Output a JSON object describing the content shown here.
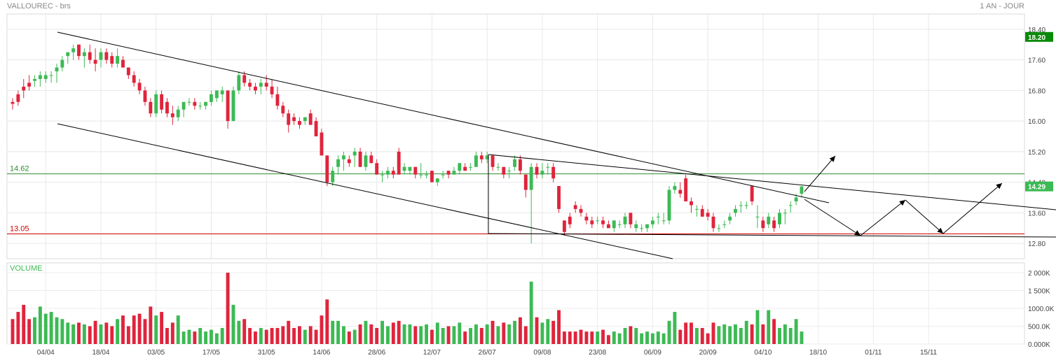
{
  "header": {
    "title": "VALLOUREC - brs",
    "period": "1 AN - JOUR"
  },
  "volume_label": "VOLUME",
  "colors": {
    "up": "#3cba54",
    "down": "#e0243c",
    "resistance": "#2e8b2e",
    "support": "#cc0000",
    "price_badge": "#3cba54",
    "last_badge_bg": "#0a8a0a"
  },
  "chart_data": {
    "type": "candlestick",
    "price_axis": {
      "ticks": [
        "18.40",
        "17.60",
        "16.80",
        "16.00",
        "15.20",
        "14.40",
        "13.60",
        "12.80"
      ],
      "range": [
        12.4,
        18.8
      ]
    },
    "volume_axis": {
      "ticks": [
        "2 000K",
        "1 500K",
        "1000.0K",
        "500.0K",
        "0.000K"
      ],
      "range": [
        0,
        2000
      ]
    },
    "date_labels": [
      "04/04",
      "18/04",
      "03/05",
      "17/05",
      "31/05",
      "14/06",
      "28/06",
      "12/07",
      "26/07",
      "09/08",
      "23/08",
      "06/09",
      "20/09",
      "04/10",
      "18/10",
      "01/11",
      "15/11"
    ],
    "levels": [
      {
        "label": "14.62",
        "value": 14.62,
        "kind": "resistance"
      },
      {
        "label": "13.05",
        "value": 13.05,
        "kind": "support"
      }
    ],
    "badges": [
      {
        "label": "18.20",
        "value": 18.2
      },
      {
        "label": "14.29",
        "value": 14.29
      }
    ],
    "candles": [
      [
        16.5,
        16.6,
        16.3,
        16.45,
        700
      ],
      [
        16.7,
        16.8,
        16.4,
        16.5,
        900
      ],
      [
        16.9,
        17.1,
        16.6,
        16.8,
        1100
      ],
      [
        17.0,
        17.2,
        16.8,
        16.9,
        700
      ],
      [
        17.05,
        17.2,
        16.9,
        17.1,
        750
      ],
      [
        17.1,
        17.3,
        16.9,
        17.2,
        1050
      ],
      [
        17.1,
        17.3,
        17.0,
        17.2,
        850
      ],
      [
        17.2,
        17.3,
        17.0,
        17.2,
        900
      ],
      [
        17.3,
        17.5,
        17.0,
        17.4,
        750
      ],
      [
        17.4,
        17.7,
        17.3,
        17.6,
        700
      ],
      [
        17.7,
        17.8,
        17.5,
        17.8,
        600
      ],
      [
        17.8,
        18.0,
        17.6,
        17.9,
        550
      ],
      [
        18.0,
        18.0,
        17.6,
        17.7,
        600
      ],
      [
        17.7,
        17.9,
        17.4,
        17.8,
        550
      ],
      [
        17.8,
        18.0,
        17.5,
        17.6,
        500
      ],
      [
        17.6,
        17.9,
        17.3,
        17.5,
        650
      ],
      [
        17.6,
        17.9,
        17.4,
        17.8,
        550
      ],
      [
        17.8,
        17.9,
        17.5,
        17.6,
        600
      ],
      [
        17.7,
        17.8,
        17.4,
        17.5,
        500
      ],
      [
        17.5,
        17.9,
        17.4,
        17.7,
        700
      ],
      [
        17.6,
        17.7,
        17.4,
        17.4,
        800
      ],
      [
        17.4,
        17.4,
        17.1,
        17.2,
        500
      ],
      [
        17.2,
        17.3,
        16.9,
        17.0,
        800
      ],
      [
        17.0,
        17.1,
        16.7,
        16.8,
        850
      ],
      [
        16.8,
        16.9,
        16.4,
        16.5,
        700
      ],
      [
        16.5,
        16.6,
        16.1,
        16.2,
        1050
      ],
      [
        16.2,
        16.8,
        16.1,
        16.7,
        800
      ],
      [
        16.7,
        16.8,
        16.2,
        16.3,
        900
      ],
      [
        16.5,
        16.6,
        16.1,
        16.2,
        450
      ],
      [
        16.2,
        16.4,
        15.9,
        16.1,
        600
      ],
      [
        16.1,
        16.4,
        16.0,
        16.3,
        800
      ],
      [
        16.3,
        16.5,
        16.1,
        16.5,
        350
      ],
      [
        16.5,
        16.6,
        16.4,
        16.5,
        400
      ],
      [
        16.5,
        16.6,
        16.3,
        16.4,
        350
      ],
      [
        16.4,
        16.5,
        16.3,
        16.4,
        450
      ],
      [
        16.4,
        16.5,
        16.3,
        16.5,
        350
      ],
      [
        16.5,
        16.8,
        16.4,
        16.7,
        400
      ],
      [
        16.6,
        16.8,
        16.5,
        16.8,
        300
      ],
      [
        16.7,
        16.9,
        16.5,
        16.8,
        450
      ],
      [
        16.8,
        16.8,
        15.8,
        16.0,
        2000
      ],
      [
        16.0,
        16.9,
        16.0,
        16.8,
        1100
      ],
      [
        16.8,
        17.3,
        16.7,
        17.2,
        650
      ],
      [
        17.2,
        17.3,
        16.9,
        17.0,
        700
      ],
      [
        17.0,
        17.1,
        16.8,
        16.9,
        450
      ],
      [
        16.9,
        17.0,
        16.7,
        16.8,
        350
      ],
      [
        16.9,
        17.1,
        16.7,
        17.0,
        450
      ],
      [
        17.0,
        17.2,
        16.8,
        16.9,
        400
      ],
      [
        16.9,
        17.1,
        16.6,
        16.7,
        450
      ],
      [
        16.7,
        16.9,
        16.3,
        16.4,
        450
      ],
      [
        16.4,
        16.5,
        16.1,
        16.2,
        500
      ],
      [
        16.2,
        16.3,
        15.7,
        15.9,
        650
      ],
      [
        16.1,
        16.2,
        15.9,
        16.0,
        450
      ],
      [
        16.0,
        16.1,
        15.8,
        15.9,
        500
      ],
      [
        16.0,
        16.1,
        15.9,
        16.1,
        400
      ],
      [
        16.2,
        16.3,
        15.9,
        15.9,
        500
      ],
      [
        16.0,
        16.1,
        15.6,
        15.6,
        400
      ],
      [
        15.7,
        15.8,
        15.1,
        15.1,
        800
      ],
      [
        15.1,
        15.1,
        14.3,
        14.4,
        1250
      ],
      [
        14.4,
        14.8,
        14.3,
        14.7,
        650
      ],
      [
        14.8,
        15.1,
        14.6,
        15.0,
        650
      ],
      [
        15.0,
        15.2,
        14.7,
        15.1,
        500
      ],
      [
        15.0,
        15.1,
        14.8,
        14.9,
        350
      ],
      [
        15.1,
        15.3,
        14.8,
        15.2,
        400
      ],
      [
        15.2,
        15.3,
        14.8,
        14.8,
        550
      ],
      [
        14.8,
        15.2,
        14.7,
        15.1,
        650
      ],
      [
        15.1,
        15.2,
        14.9,
        14.9,
        550
      ],
      [
        14.9,
        15.0,
        14.6,
        14.6,
        450
      ],
      [
        14.6,
        14.7,
        14.4,
        14.6,
        650
      ],
      [
        14.6,
        14.8,
        14.5,
        14.7,
        500
      ],
      [
        14.7,
        14.8,
        14.5,
        14.6,
        600
      ],
      [
        15.2,
        15.3,
        14.6,
        14.6,
        650
      ],
      [
        14.7,
        14.9,
        14.6,
        14.8,
        550
      ],
      [
        14.7,
        14.8,
        14.6,
        14.8,
        550
      ],
      [
        14.8,
        14.8,
        14.5,
        14.6,
        500
      ],
      [
        14.6,
        14.9,
        14.5,
        14.6,
        500
      ],
      [
        14.6,
        14.7,
        14.5,
        14.6,
        550
      ],
      [
        14.7,
        14.7,
        14.4,
        14.4,
        400
      ],
      [
        14.4,
        14.5,
        14.3,
        14.5,
        600
      ],
      [
        14.6,
        14.7,
        14.5,
        14.6,
        450
      ],
      [
        14.7,
        14.7,
        14.5,
        14.6,
        500
      ],
      [
        14.6,
        14.8,
        14.6,
        14.7,
        500
      ],
      [
        14.7,
        14.9,
        14.6,
        14.9,
        600
      ],
      [
        14.8,
        14.9,
        14.7,
        14.7,
        350
      ],
      [
        14.8,
        14.9,
        14.7,
        14.8,
        450
      ],
      [
        14.8,
        15.2,
        14.8,
        15.1,
        550
      ],
      [
        15.1,
        15.2,
        14.9,
        15.0,
        450
      ],
      [
        15.0,
        15.2,
        14.9,
        15.1,
        550
      ],
      [
        15.1,
        15.1,
        14.7,
        14.8,
        650
      ],
      [
        14.8,
        14.9,
        14.7,
        14.8,
        500
      ],
      [
        14.8,
        14.8,
        14.5,
        14.6,
        600
      ],
      [
        14.7,
        14.8,
        14.5,
        14.7,
        550
      ],
      [
        14.8,
        15.1,
        14.7,
        15.0,
        650
      ],
      [
        15.0,
        15.1,
        14.6,
        14.7,
        750
      ],
      [
        14.6,
        14.6,
        14.0,
        14.2,
        500
      ],
      [
        14.2,
        14.9,
        12.8,
        14.8,
        1750
      ],
      [
        14.8,
        14.9,
        14.5,
        14.6,
        750
      ],
      [
        14.6,
        14.9,
        14.5,
        14.7,
        600
      ],
      [
        14.8,
        14.9,
        14.6,
        14.8,
        700
      ],
      [
        14.8,
        14.9,
        14.4,
        14.5,
        650
      ],
      [
        14.3,
        14.3,
        13.6,
        13.7,
        950
      ],
      [
        13.4,
        13.4,
        13.0,
        13.1,
        350
      ],
      [
        13.5,
        13.6,
        13.2,
        13.3,
        350
      ],
      [
        13.8,
        13.9,
        13.6,
        13.7,
        350
      ],
      [
        13.7,
        13.8,
        13.5,
        13.6,
        400
      ],
      [
        13.5,
        13.6,
        13.3,
        13.4,
        350
      ],
      [
        13.4,
        13.5,
        13.2,
        13.3,
        350
      ],
      [
        13.4,
        13.5,
        13.3,
        13.4,
        350
      ],
      [
        13.4,
        13.5,
        13.2,
        13.3,
        400
      ],
      [
        13.3,
        13.4,
        13.2,
        13.2,
        250
      ],
      [
        13.2,
        13.4,
        13.1,
        13.4,
        350
      ],
      [
        13.3,
        13.4,
        13.2,
        13.3,
        300
      ],
      [
        13.3,
        13.6,
        13.2,
        13.5,
        450
      ],
      [
        13.6,
        13.6,
        13.2,
        13.3,
        500
      ],
      [
        13.2,
        13.4,
        13.1,
        13.3,
        450
      ],
      [
        13.2,
        13.3,
        13.1,
        13.2,
        300
      ],
      [
        13.2,
        13.3,
        13.1,
        13.3,
        350
      ],
      [
        13.3,
        13.5,
        13.2,
        13.4,
        300
      ],
      [
        13.5,
        13.6,
        13.3,
        13.5,
        350
      ],
      [
        13.4,
        13.6,
        13.3,
        13.4,
        300
      ],
      [
        13.4,
        14.3,
        13.3,
        14.2,
        650
      ],
      [
        14.2,
        14.4,
        14.1,
        14.3,
        900
      ],
      [
        14.2,
        14.4,
        14.0,
        14.1,
        400
      ],
      [
        14.5,
        14.6,
        13.9,
        13.9,
        600
      ],
      [
        13.9,
        14.0,
        13.6,
        13.8,
        600
      ],
      [
        13.7,
        13.8,
        13.5,
        13.7,
        450
      ],
      [
        13.7,
        13.8,
        13.5,
        13.5,
        450
      ],
      [
        13.6,
        13.7,
        13.4,
        13.5,
        300
      ],
      [
        13.5,
        13.6,
        13.1,
        13.2,
        600
      ],
      [
        13.2,
        13.3,
        13.1,
        13.2,
        500
      ],
      [
        13.3,
        13.4,
        13.2,
        13.3,
        550
      ],
      [
        13.4,
        13.6,
        13.3,
        13.5,
        500
      ],
      [
        13.6,
        13.8,
        13.5,
        13.7,
        550
      ],
      [
        13.8,
        13.9,
        13.6,
        13.8,
        450
      ],
      [
        13.8,
        13.9,
        13.7,
        13.8,
        650
      ],
      [
        14.3,
        14.3,
        13.8,
        13.9,
        550
      ],
      [
        13.5,
        13.8,
        13.2,
        13.5,
        950
      ],
      [
        13.4,
        13.5,
        13.1,
        13.2,
        550
      ],
      [
        13.3,
        13.6,
        13.2,
        13.5,
        950
      ],
      [
        13.4,
        13.5,
        13.1,
        13.2,
        700
      ],
      [
        13.3,
        13.7,
        13.2,
        13.6,
        450
      ],
      [
        13.6,
        13.7,
        13.3,
        13.6,
        550
      ],
      [
        13.8,
        13.9,
        13.6,
        13.8,
        450
      ],
      [
        13.9,
        14.1,
        13.8,
        14.0,
        700
      ],
      [
        14.1,
        14.3,
        14.0,
        14.29,
        350
      ]
    ]
  }
}
